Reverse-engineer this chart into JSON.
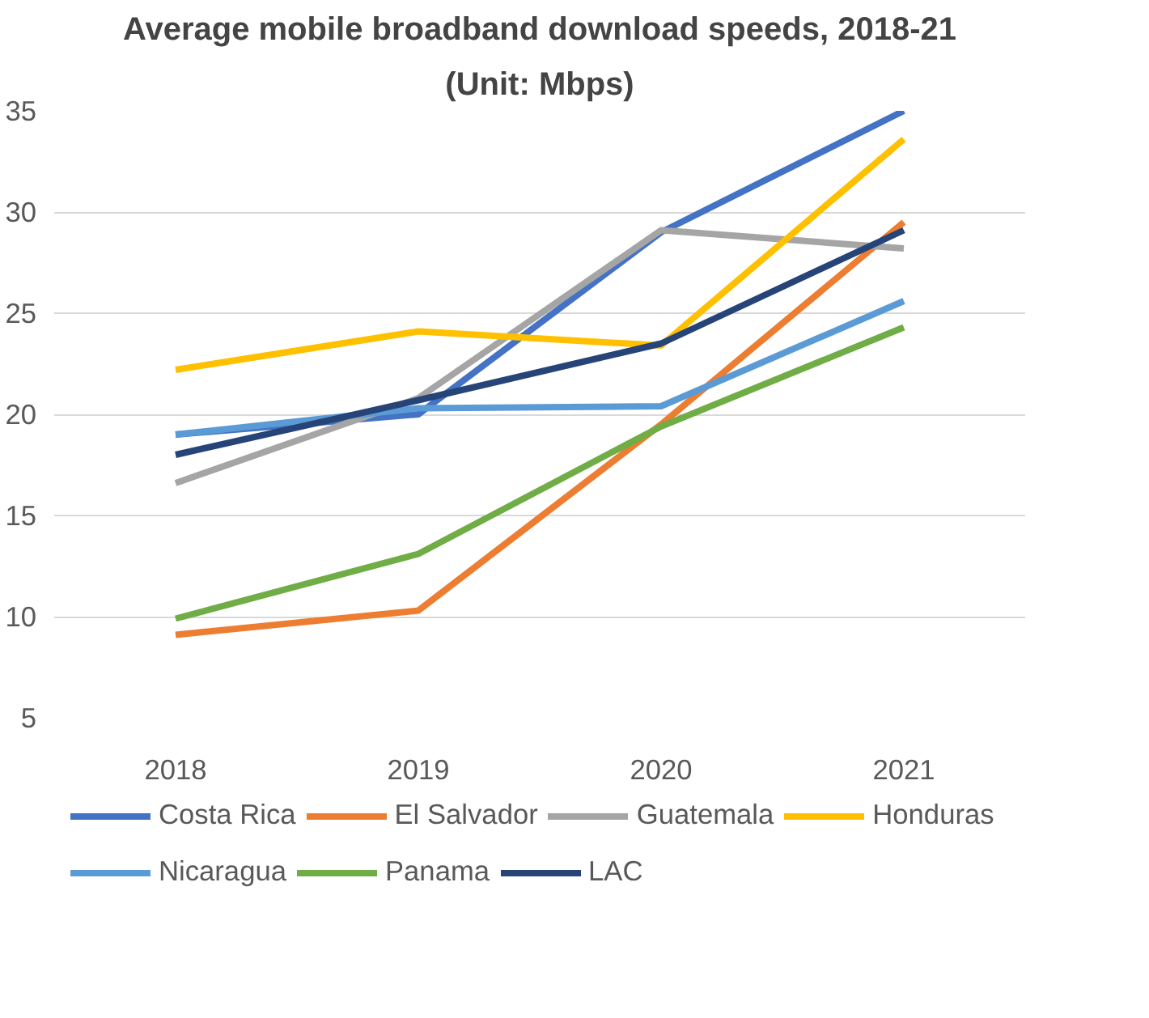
{
  "chart_data": {
    "type": "line",
    "title": "Average mobile broadband download speeds, 2018-21",
    "subtitle": "(Unit: Mbps)",
    "categories": [
      "2018",
      "2019",
      "2020",
      "2021"
    ],
    "series": [
      {
        "name": "Costa Rica",
        "color": "#4472c4",
        "values": [
          19.0,
          20.0,
          29.0,
          35.0
        ]
      },
      {
        "name": "El Salvador",
        "color": "#ed7d31",
        "values": [
          9.1,
          10.3,
          19.5,
          29.5
        ]
      },
      {
        "name": "Guatemala",
        "color": "#a5a5a5",
        "values": [
          16.6,
          20.8,
          29.1,
          28.2
        ]
      },
      {
        "name": "Honduras",
        "color": "#ffc000",
        "values": [
          22.2,
          24.1,
          23.4,
          33.6
        ]
      },
      {
        "name": "Nicaragua",
        "color": "#5b9bd5",
        "values": [
          19.0,
          20.3,
          20.4,
          25.6
        ]
      },
      {
        "name": "Panama",
        "color": "#70ad47",
        "values": [
          9.9,
          13.1,
          19.4,
          24.3
        ]
      },
      {
        "name": "LAC",
        "color": "#264478",
        "values": [
          18.0,
          20.7,
          23.5,
          29.1
        ]
      }
    ],
    "ylim": [
      5,
      35
    ],
    "yticks": [
      5,
      10,
      15,
      20,
      25,
      30,
      35
    ],
    "grid": "y",
    "legend": "bottom",
    "marker": "none",
    "line_style": "solid"
  }
}
